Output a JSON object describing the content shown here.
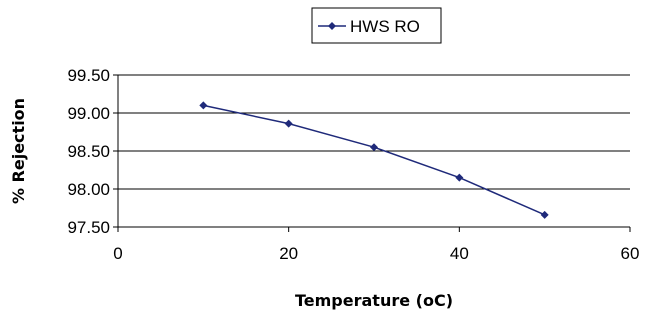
{
  "chart_data": {
    "type": "line",
    "xlabel": "Temperature (oC)",
    "ylabel": "% Rejection",
    "xlim": [
      0,
      60
    ],
    "ylim": [
      97.5,
      99.5
    ],
    "x_ticks": [
      "0",
      "20",
      "40",
      "60"
    ],
    "y_ticks": [
      "97.50",
      "98.00",
      "98.50",
      "99.00",
      "99.50"
    ],
    "grid": "horizontal",
    "legend_position": "top-center",
    "series": [
      {
        "name": "HWS RO",
        "color": "#1f2a7a",
        "marker": "diamond",
        "x": [
          10,
          20,
          30,
          40,
          50
        ],
        "y": [
          99.1,
          98.86,
          98.55,
          98.15,
          97.66
        ]
      }
    ]
  }
}
